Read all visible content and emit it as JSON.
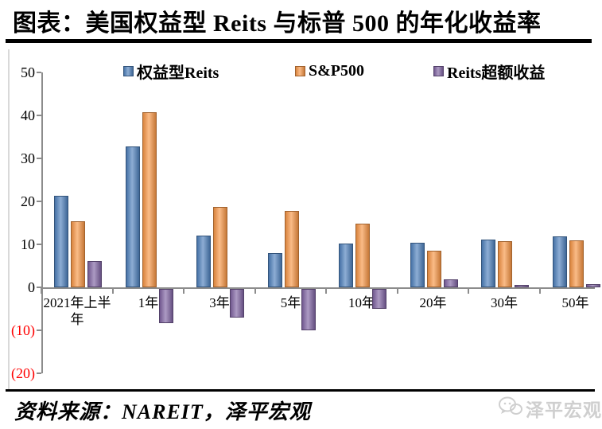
{
  "title": "图表：美国权益型 Reits 与标普 500 的年化收益率",
  "footer": {
    "source_label": "资料来源：NAREIT，泽平宏观"
  },
  "watermark": {
    "brand": "泽平宏观",
    "icon": "wechat-bubbles-icon"
  },
  "colors": {
    "reits_blue": "#4F81BD",
    "sp500_orange": "#F79646",
    "excess_purple": "#8064A2",
    "axis_gray": "#8C8C8C",
    "negative_tick_red": "#FF0000",
    "rule_black": "#000000",
    "watermark_gray": "#CFCFCF"
  },
  "chart_data": {
    "type": "bar",
    "title": "美国权益型Reits与标普500的年化收益率",
    "categories": [
      "2021年上半年",
      "1年",
      "3年",
      "5年",
      "10年",
      "20年",
      "30年",
      "50年"
    ],
    "series": [
      {
        "name": "权益型Reits",
        "color": "#4F81BD",
        "values": [
          21.3,
          32.8,
          12.0,
          8.0,
          10.2,
          10.4,
          11.2,
          11.8
        ]
      },
      {
        "name": "S&P500",
        "color": "#F79646",
        "values": [
          15.3,
          40.8,
          18.7,
          17.8,
          14.8,
          8.6,
          10.7,
          11.0
        ]
      },
      {
        "name": "Reits超额收益",
        "color": "#8064A2",
        "values": [
          6.1,
          -8.0,
          -6.7,
          -9.7,
          -4.6,
          1.8,
          0.5,
          0.8
        ]
      }
    ],
    "xlabel": "",
    "ylabel": "",
    "ylim": [
      -20,
      50
    ],
    "yticks": [
      50,
      40,
      30,
      20,
      10,
      0,
      -10,
      -20
    ],
    "ytick_labels": [
      "50",
      "40",
      "30",
      "20",
      "10",
      "0",
      "(10)",
      "(20)"
    ],
    "legend_position": "top",
    "grid": false,
    "bar_unit": "percent_annualized_return"
  }
}
